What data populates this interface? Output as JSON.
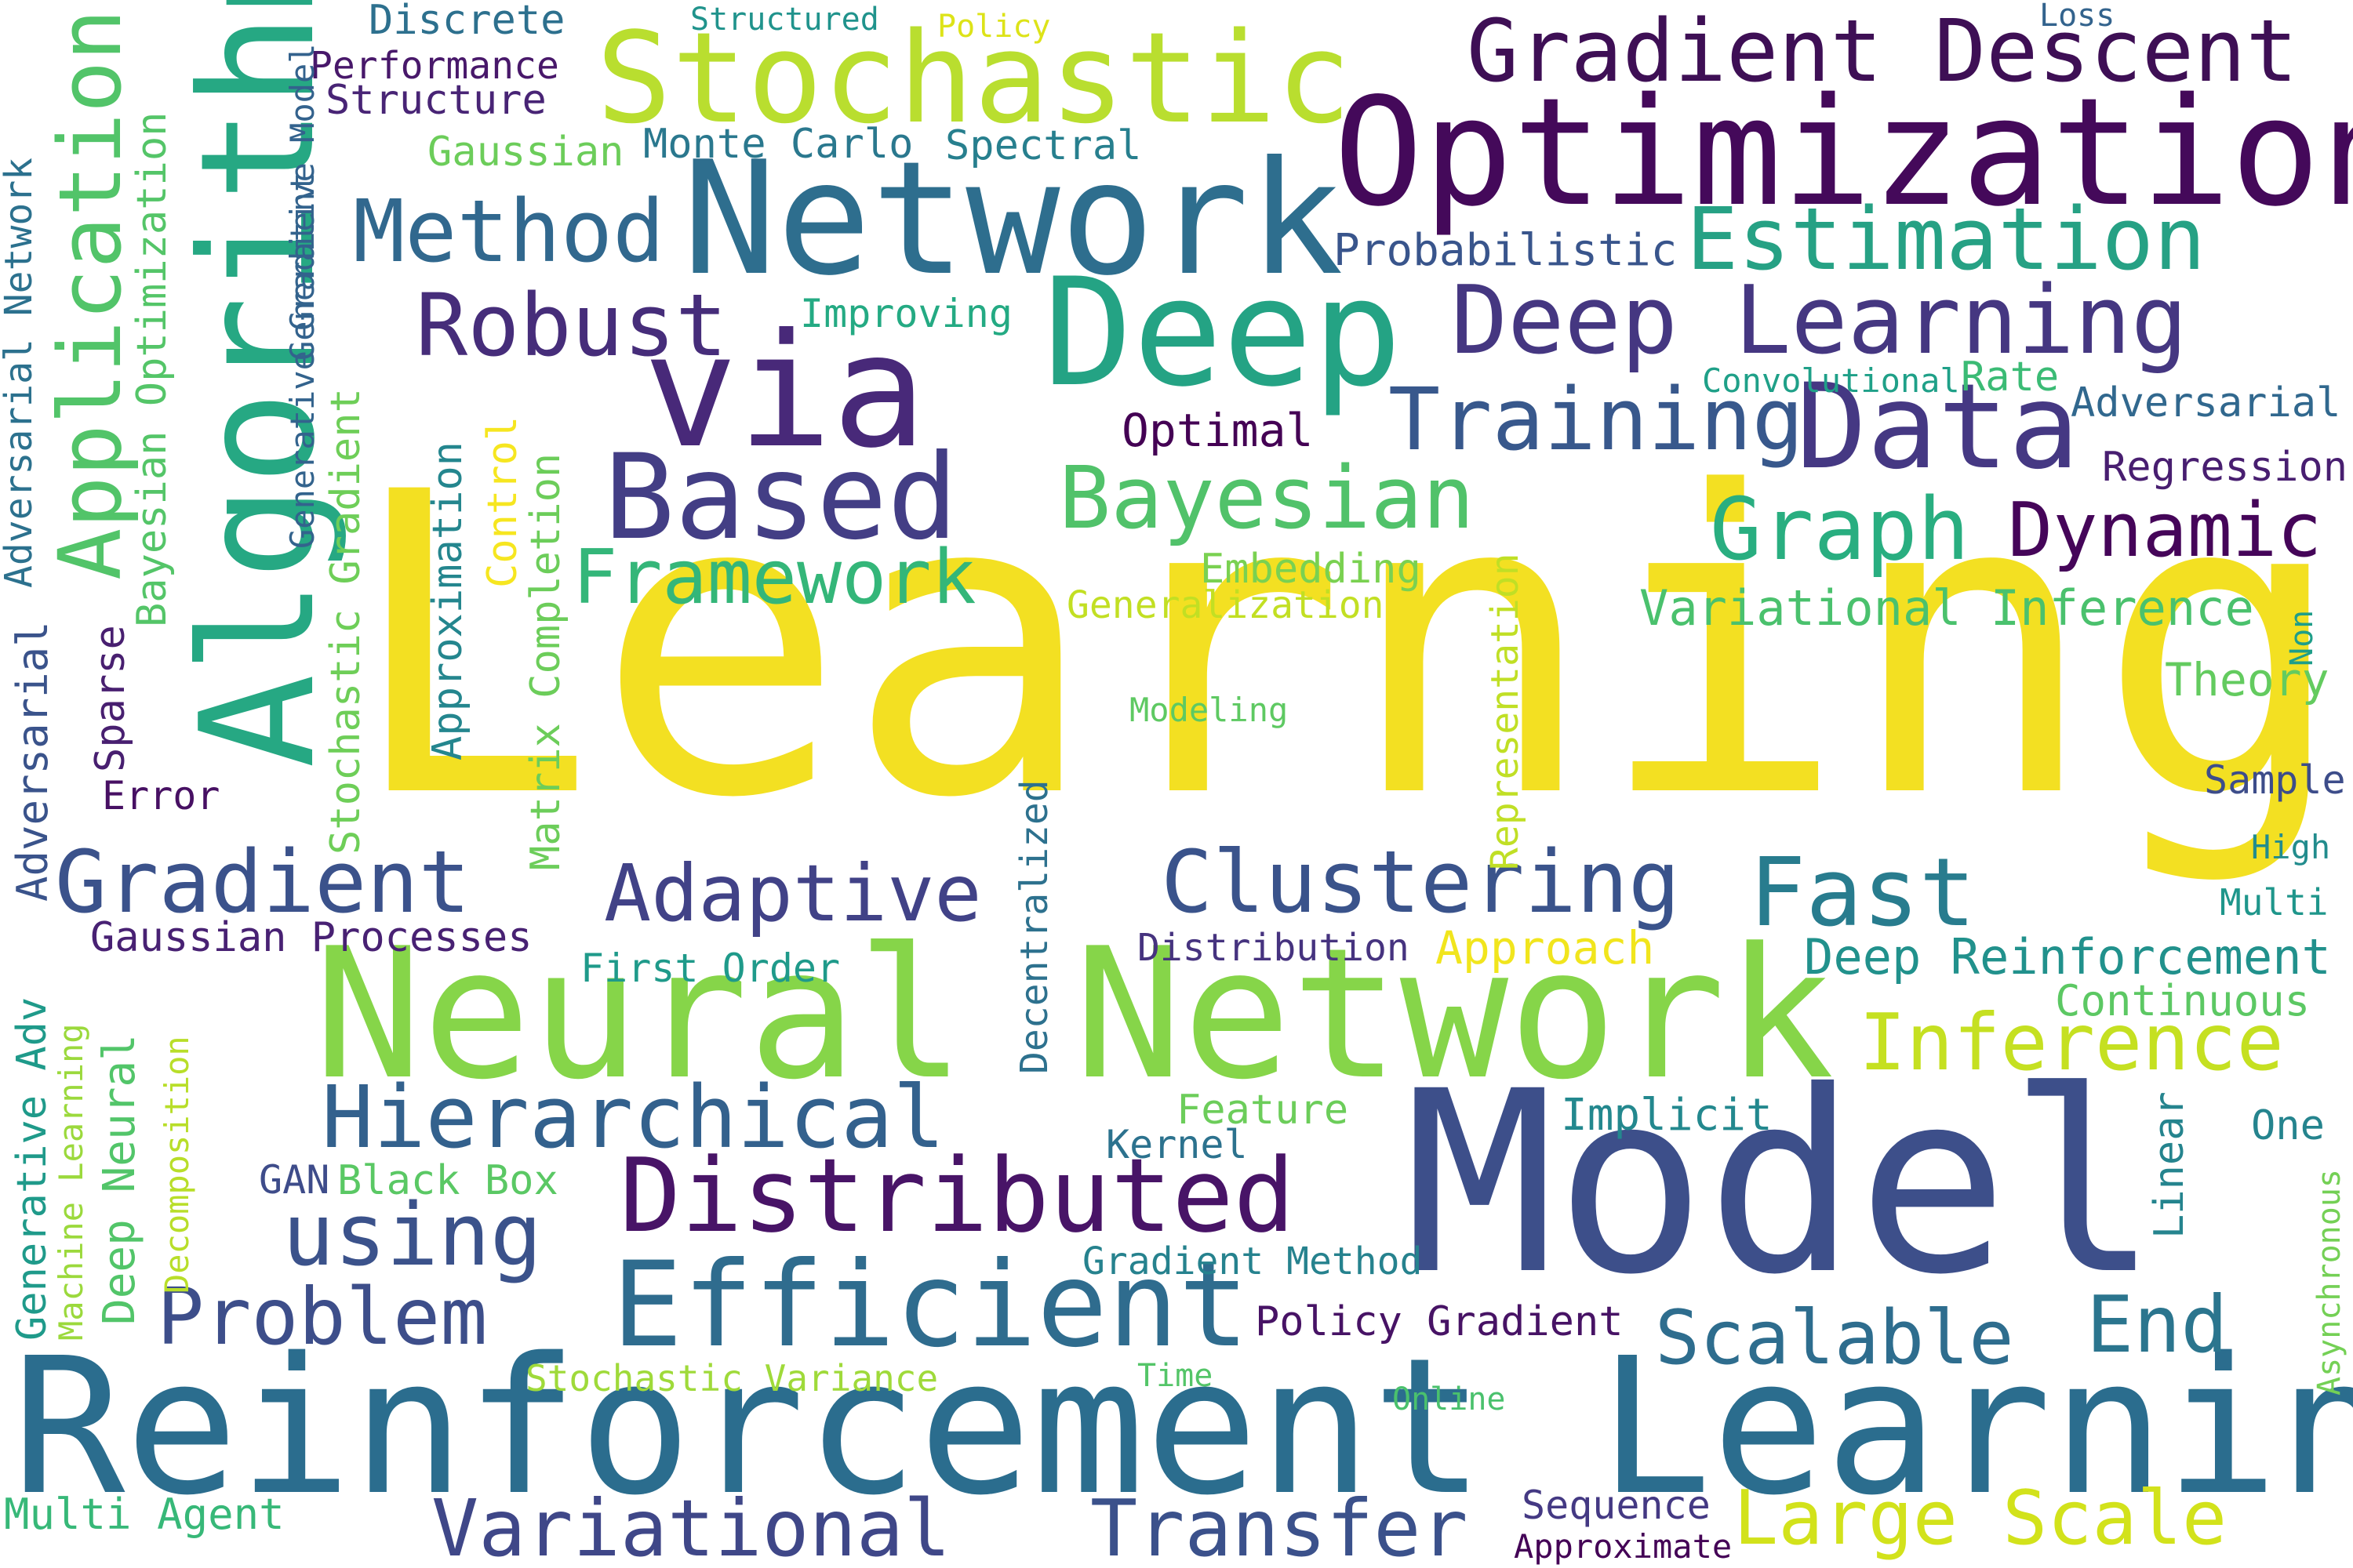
{
  "palette": {
    "yellow": "#f3e022",
    "lime": "#b5dc36",
    "light_green": "#7ed04b",
    "green": "#3ebc73",
    "teal": "#26a285",
    "teal_blue": "#22848e",
    "blue": "#2e6d8e",
    "steel": "#385f8d",
    "indigo": "#404588",
    "purple": "#472b7a",
    "dark_purple": "#440c58"
  },
  "words": [
    {
      "text": "Learning",
      "color": "#f3e022"
    },
    {
      "text": "Model",
      "color": "#3d4f8a"
    },
    {
      "text": "Reinforcement Learning",
      "color": "#2b6d8e"
    },
    {
      "text": "Neural Network",
      "color": "#86d549"
    },
    {
      "text": "Optimization",
      "color": "#44095a"
    },
    {
      "text": "Network",
      "color": "#2e6e8e"
    },
    {
      "text": "Deep",
      "color": "#24a384"
    },
    {
      "text": "Stochastic",
      "color": "#b9de2f"
    },
    {
      "text": "via",
      "color": "#482979"
    },
    {
      "text": "Algorithm",
      "color": "#26a883"
    },
    {
      "text": "Based",
      "color": "#433e85"
    },
    {
      "text": "Data",
      "color": "#453883"
    },
    {
      "text": "Efficient",
      "color": "#2f6c8e"
    },
    {
      "text": "Distributed",
      "color": "#481467"
    },
    {
      "text": "Gradient Descent",
      "color": "#3e0f55"
    },
    {
      "text": "Deep Learning",
      "color": "#453781"
    },
    {
      "text": "Estimation",
      "color": "#26a184"
    },
    {
      "text": "Application",
      "color": "#52c469"
    },
    {
      "text": "Hierarchical",
      "color": "#33618d"
    },
    {
      "text": "Gradient",
      "color": "#3b528b"
    },
    {
      "text": "Clustering",
      "color": "#3a538b"
    },
    {
      "text": "Bayesian",
      "color": "#51c26a"
    },
    {
      "text": "Robust",
      "color": "#462d7a"
    },
    {
      "text": "Method",
      "color": "#31688e"
    },
    {
      "text": "Training",
      "color": "#38588c"
    },
    {
      "text": "Graph",
      "color": "#29ae80"
    },
    {
      "text": "Dynamic",
      "color": "#450559"
    },
    {
      "text": "Framework",
      "color": "#34b679"
    },
    {
      "text": "Adaptive",
      "color": "#414287"
    },
    {
      "text": "Fast",
      "color": "#287c8e"
    },
    {
      "text": "Variational",
      "color": "#3f4788"
    },
    {
      "text": "Transfer",
      "color": "#3b518b"
    },
    {
      "text": "Large Scale",
      "color": "#d2e21b"
    },
    {
      "text": "using",
      "color": "#3b528b"
    },
    {
      "text": "Problem",
      "color": "#3d4e8a"
    },
    {
      "text": "Inference",
      "color": "#c5e021"
    },
    {
      "text": "Scalable",
      "color": "#2e6d8e"
    },
    {
      "text": "End",
      "color": "#2b758e"
    },
    {
      "text": "Variational Inference",
      "color": "#4ac16d"
    },
    {
      "text": "Deep Reinforcement",
      "color": "#21918c"
    },
    {
      "text": "Probabilistic",
      "color": "#39558c"
    },
    {
      "text": "Improving",
      "color": "#24aa83"
    },
    {
      "text": "Optimal",
      "color": "#440154"
    },
    {
      "text": "Adversarial",
      "color": "#31688e"
    },
    {
      "text": "Regression",
      "color": "#481e70"
    },
    {
      "text": "Convolutional",
      "color": "#1fa088"
    },
    {
      "text": "Rate",
      "color": "#3bbb75"
    },
    {
      "text": "Discrete",
      "color": "#2d708e"
    },
    {
      "text": "Performance",
      "color": "#48186a"
    },
    {
      "text": "Structure",
      "color": "#482475"
    },
    {
      "text": "Gaussian",
      "color": "#6ccd5a"
    },
    {
      "text": "Monte Carlo",
      "color": "#2a788e"
    },
    {
      "text": "Spectral",
      "color": "#277f8e"
    },
    {
      "text": "Structured",
      "color": "#20938c"
    },
    {
      "text": "Policy",
      "color": "#dde318"
    },
    {
      "text": "Loss",
      "color": "#33638d"
    },
    {
      "text": "Embedding",
      "color": "#7ad151"
    },
    {
      "text": "Generalization",
      "color": "#c2df23"
    },
    {
      "text": "Theory",
      "color": "#63cb5f"
    },
    {
      "text": "Modeling",
      "color": "#5ec962"
    },
    {
      "text": "Sample",
      "color": "#3d4d8a"
    },
    {
      "text": "High",
      "color": "#228c8d"
    },
    {
      "text": "Multi",
      "color": "#1f968b"
    },
    {
      "text": "Distribution",
      "color": "#46337f"
    },
    {
      "text": "Approach",
      "color": "#f1e51d"
    },
    {
      "text": "First Order",
      "color": "#1f9a8a"
    },
    {
      "text": "Gaussian Processes",
      "color": "#482173"
    },
    {
      "text": "Error",
      "color": "#471063"
    },
    {
      "text": "Continuous",
      "color": "#5cc863"
    },
    {
      "text": "One",
      "color": "#25848e"
    },
    {
      "text": "Implicit",
      "color": "#23888e"
    },
    {
      "text": "Feature",
      "color": "#6ccd5a"
    },
    {
      "text": "Kernel",
      "color": "#2c728e"
    },
    {
      "text": "GAN",
      "color": "#3e4c8a"
    },
    {
      "text": "Black Box",
      "color": "#5ac864"
    },
    {
      "text": "Gradient Method",
      "color": "#26828e"
    },
    {
      "text": "Policy Gradient",
      "color": "#471365"
    },
    {
      "text": "Stochastic Variance",
      "color": "#9fda3a"
    },
    {
      "text": "Time",
      "color": "#54c568"
    },
    {
      "text": "Online",
      "color": "#4ac16d"
    },
    {
      "text": "Multi Agent",
      "color": "#37b878"
    },
    {
      "text": "Sequence",
      "color": "#443983"
    },
    {
      "text": "Approximate",
      "color": "#440256"
    },
    {
      "text": "Adversarial Network",
      "color": "#2c718e"
    },
    {
      "text": "Bayesian Optimization",
      "color": "#54c568"
    },
    {
      "text": "Generative Model",
      "color": "#33628d"
    },
    {
      "text": "Generative Gradient",
      "color": "#33638d"
    },
    {
      "text": "Stochastic Gradient",
      "color": "#6ece58"
    },
    {
      "text": "Control",
      "color": "#f6e620"
    },
    {
      "text": "Approximation",
      "color": "#24868e"
    },
    {
      "text": "Matrix Completion",
      "color": "#6ccd5a"
    },
    {
      "text": "Representation",
      "color": "#c0df25"
    },
    {
      "text": "Decentralized",
      "color": "#2d718e"
    },
    {
      "text": "Adversarial",
      "color": "#3a538b"
    },
    {
      "text": "Sparse",
      "color": "#481f70"
    },
    {
      "text": "Generative Adv",
      "color": "#1f9a8a"
    },
    {
      "text": "Deep Neural",
      "color": "#52c569"
    },
    {
      "text": "Machine Learning",
      "color": "#9bd93c"
    },
    {
      "text": "Decomposition",
      "color": "#b8de29"
    },
    {
      "text": "Linear",
      "color": "#25848e"
    },
    {
      "text": "Asynchronous",
      "color": "#74d055"
    },
    {
      "text": "Non",
      "color": "#1f9e89"
    }
  ]
}
